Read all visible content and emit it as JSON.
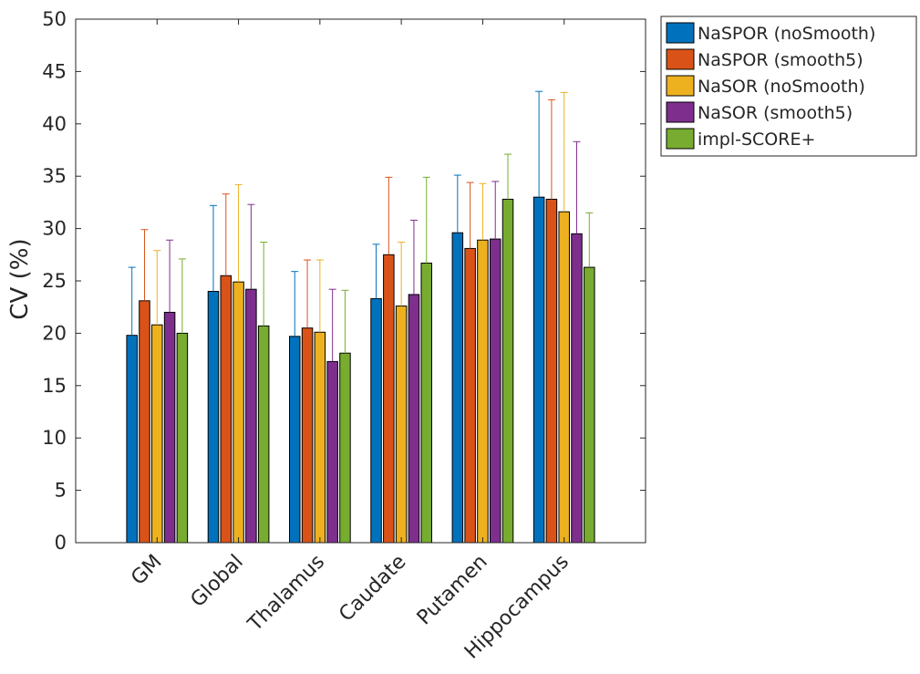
{
  "chart_data": {
    "type": "bar",
    "title": "",
    "xlabel": "",
    "ylabel": "CV (%)",
    "ylim": [
      0,
      50
    ],
    "yticks": [
      0,
      5,
      10,
      15,
      20,
      25,
      30,
      35,
      40,
      45,
      50
    ],
    "grid": false,
    "legend_position": "outside-top-right",
    "categories": [
      "GM",
      "Global",
      "Thalamus",
      "Caudate",
      "Putamen",
      "Hippocampus"
    ],
    "series": [
      {
        "name": "NaSPOR (noSmooth)",
        "color": "#0072BD",
        "values": [
          19.8,
          24.0,
          19.7,
          23.3,
          29.6,
          33.0
        ],
        "error_upper": [
          26.3,
          32.2,
          25.9,
          28.5,
          35.1,
          43.1
        ]
      },
      {
        "name": "NaSPOR (smooth5)",
        "color": "#D95319",
        "values": [
          23.1,
          25.5,
          20.5,
          27.5,
          28.1,
          32.8
        ],
        "error_upper": [
          29.9,
          33.3,
          27.0,
          34.9,
          34.4,
          42.3
        ]
      },
      {
        "name": "NaSOR (noSmooth)",
        "color": "#EDB120",
        "values": [
          20.8,
          24.9,
          20.1,
          22.6,
          28.9,
          31.6
        ],
        "error_upper": [
          27.9,
          34.2,
          27.0,
          28.7,
          34.3,
          43.0
        ]
      },
      {
        "name": "NaSOR (smooth5)",
        "color": "#7E2F8E",
        "values": [
          22.0,
          24.2,
          17.3,
          23.7,
          29.0,
          29.5
        ],
        "error_upper": [
          28.9,
          32.3,
          24.2,
          30.8,
          34.5,
          38.3
        ]
      },
      {
        "name": "impl-SCORE+",
        "color": "#77AC30",
        "values": [
          20.0,
          20.7,
          18.1,
          26.7,
          32.8,
          26.3
        ],
        "error_upper": [
          27.1,
          28.7,
          24.1,
          34.9,
          37.1,
          31.5
        ]
      }
    ]
  }
}
